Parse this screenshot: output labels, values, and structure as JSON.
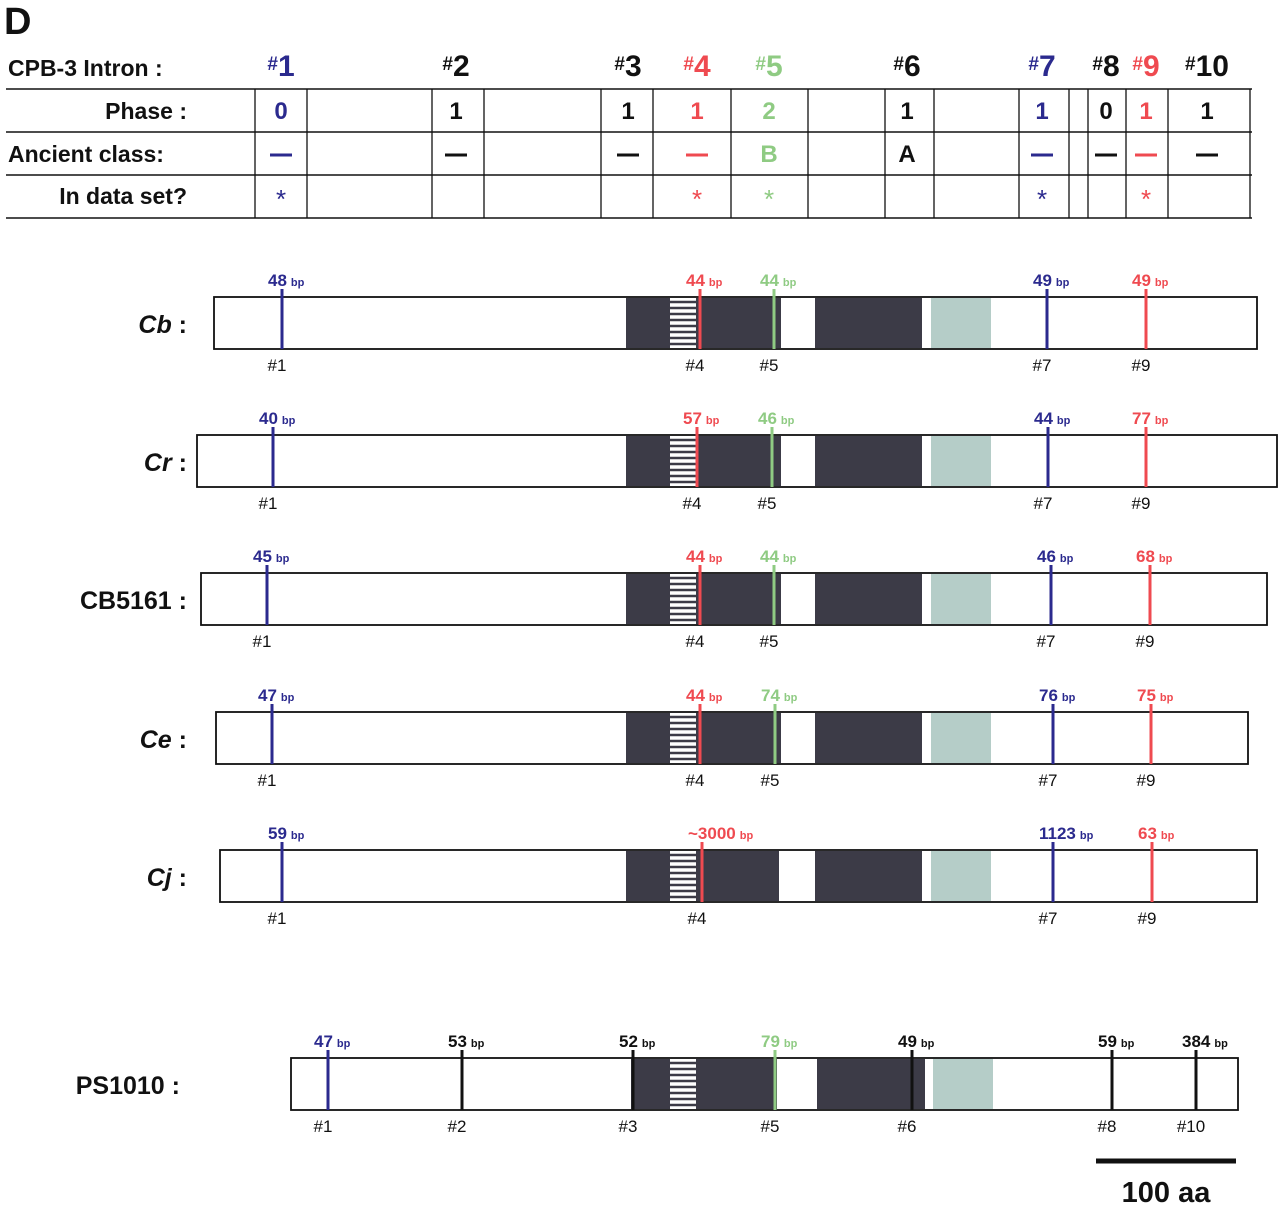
{
  "panel_label": "D",
  "colors": {
    "blue": "#2b2a8e",
    "red": "#ef4a50",
    "green": "#8fcb83",
    "black": "#111111",
    "dark_domain": "#3c3b47",
    "teal_domain": "#b5cdc8",
    "outline": "#111111"
  },
  "table": {
    "row_labels": [
      "CPB-3 Intron :",
      "Phase :",
      "Ancient class:",
      "In data set?"
    ],
    "introns": [
      {
        "id": "1",
        "hash": "#",
        "num": "1",
        "color": "blue",
        "phase": "0",
        "ancient": "—",
        "in_set": "*"
      },
      {
        "id": "2",
        "hash": "#",
        "num": "2",
        "color": "black",
        "phase": "1",
        "ancient": "—",
        "in_set": ""
      },
      {
        "id": "3",
        "hash": "#",
        "num": "3",
        "color": "black",
        "phase": "1",
        "ancient": "—",
        "in_set": ""
      },
      {
        "id": "4",
        "hash": "#",
        "num": "4",
        "color": "red",
        "phase": "1",
        "ancient": "—",
        "in_set": "*"
      },
      {
        "id": "5",
        "hash": "#",
        "num": "5",
        "color": "green",
        "phase": "2",
        "ancient": "B",
        "in_set": "*"
      },
      {
        "id": "6",
        "hash": "#",
        "num": "6",
        "color": "black",
        "phase": "1",
        "ancient": "A",
        "in_set": ""
      },
      {
        "id": "7",
        "hash": "#",
        "num": "7",
        "color": "blue",
        "phase": "1",
        "ancient": "—",
        "in_set": "*"
      },
      {
        "id": "8",
        "hash": "#",
        "num": "8",
        "color": "black",
        "phase": "0",
        "ancient": "—",
        "in_set": ""
      },
      {
        "id": "9",
        "hash": "#",
        "num": "9",
        "color": "red",
        "phase": "1",
        "ancient": "—",
        "in_set": "*"
      },
      {
        "id": "10",
        "hash": "#",
        "num": "10",
        "color": "black",
        "phase": "1",
        "ancient": "—",
        "in_set": ""
      }
    ]
  },
  "unit_bp": "bp",
  "species": [
    {
      "name": "Cb",
      "suffix": " :",
      "italic": true,
      "introns": [
        {
          "id": "1",
          "size": "48",
          "color": "blue"
        },
        {
          "id": "4",
          "size": "44",
          "color": "red"
        },
        {
          "id": "5",
          "size": "44",
          "color": "green"
        },
        {
          "id": "7",
          "size": "49",
          "color": "blue"
        },
        {
          "id": "9",
          "size": "49",
          "color": "red"
        }
      ]
    },
    {
      "name": "Cr",
      "suffix": " :",
      "italic": true,
      "introns": [
        {
          "id": "1",
          "size": "40",
          "color": "blue"
        },
        {
          "id": "4",
          "size": "57",
          "color": "red"
        },
        {
          "id": "5",
          "size": "46",
          "color": "green"
        },
        {
          "id": "7",
          "size": "44",
          "color": "blue"
        },
        {
          "id": "9",
          "size": "77",
          "color": "red"
        }
      ]
    },
    {
      "name": "CB5161",
      "suffix": " :",
      "italic": false,
      "introns": [
        {
          "id": "1",
          "size": "45",
          "color": "blue"
        },
        {
          "id": "4",
          "size": "44",
          "color": "red"
        },
        {
          "id": "5",
          "size": "44",
          "color": "green"
        },
        {
          "id": "7",
          "size": "46",
          "color": "blue"
        },
        {
          "id": "9",
          "size": "68",
          "color": "red"
        }
      ]
    },
    {
      "name": "Ce",
      "suffix": " :",
      "italic": true,
      "introns": [
        {
          "id": "1",
          "size": "47",
          "color": "blue"
        },
        {
          "id": "4",
          "size": "44",
          "color": "red"
        },
        {
          "id": "5",
          "size": "74",
          "color": "green"
        },
        {
          "id": "7",
          "size": "76",
          "color": "blue"
        },
        {
          "id": "9",
          "size": "75",
          "color": "red"
        }
      ]
    },
    {
      "name": "Cj",
      "suffix": " :",
      "italic": true,
      "introns": [
        {
          "id": "1",
          "size": "59",
          "color": "blue"
        },
        {
          "id": "4",
          "size": "~3000",
          "color": "red"
        },
        {
          "id": "7",
          "size": "1123",
          "color": "blue"
        },
        {
          "id": "9",
          "size": "63",
          "color": "red"
        }
      ]
    },
    {
      "name": "PS1010",
      "suffix": " :",
      "italic": false,
      "introns": [
        {
          "id": "1",
          "size": "47",
          "color": "blue"
        },
        {
          "id": "2",
          "size": "53",
          "color": "black"
        },
        {
          "id": "3",
          "size": "52",
          "color": "black"
        },
        {
          "id": "5",
          "size": "79",
          "color": "green"
        },
        {
          "id": "6",
          "size": "49",
          "color": "black"
        },
        {
          "id": "8",
          "size": "59",
          "color": "black"
        },
        {
          "id": "10",
          "size": "384",
          "color": "black"
        }
      ]
    }
  ],
  "scale_bar": {
    "label": "100 aa"
  }
}
